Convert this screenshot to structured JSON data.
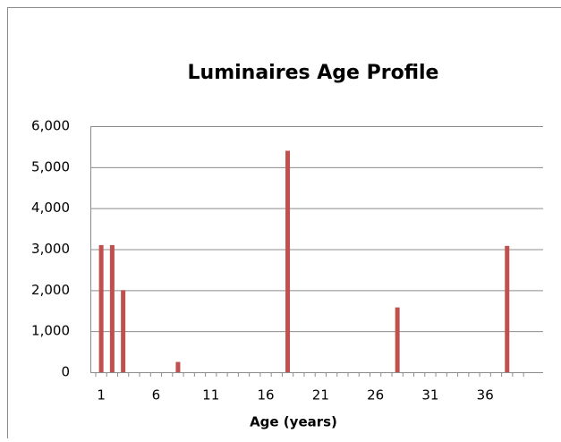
{
  "chart_data": {
    "type": "bar",
    "title": "Luminaires Age Profile",
    "x_label": "Age (years)",
    "categories": [
      1,
      null,
      null,
      null,
      null,
      6,
      null,
      null,
      null,
      null,
      11,
      null,
      null,
      null,
      null,
      16,
      null,
      null,
      null,
      null,
      21,
      null,
      null,
      null,
      null,
      26,
      null,
      null,
      null,
      null,
      31,
      null,
      null,
      null,
      null,
      36,
      null,
      null,
      null,
      null
    ],
    "values": [
      3100,
      3100,
      2000,
      0,
      0,
      0,
      0,
      250,
      0,
      0,
      0,
      0,
      0,
      0,
      0,
      0,
      0,
      5400,
      0,
      0,
      0,
      0,
      0,
      0,
      0,
      0,
      0,
      1580,
      0,
      0,
      0,
      0,
      0,
      0,
      0,
      0,
      0,
      3080,
      0,
      0
    ],
    "color": "#c0504d",
    "ylim": [
      0,
      6000
    ],
    "yticks": [
      0,
      {
        "value": 1000,
        "label": "1,000"
      },
      {
        "value": 2000,
        "label": "2,000"
      },
      {
        "value": 3000,
        "label": "3,000"
      },
      {
        "value": 4000,
        "label": "4,000"
      },
      {
        "value": 5000,
        "label": "5,000"
      },
      {
        "value": 6000,
        "label": "6,000"
      }
    ],
    "grid": true
  }
}
